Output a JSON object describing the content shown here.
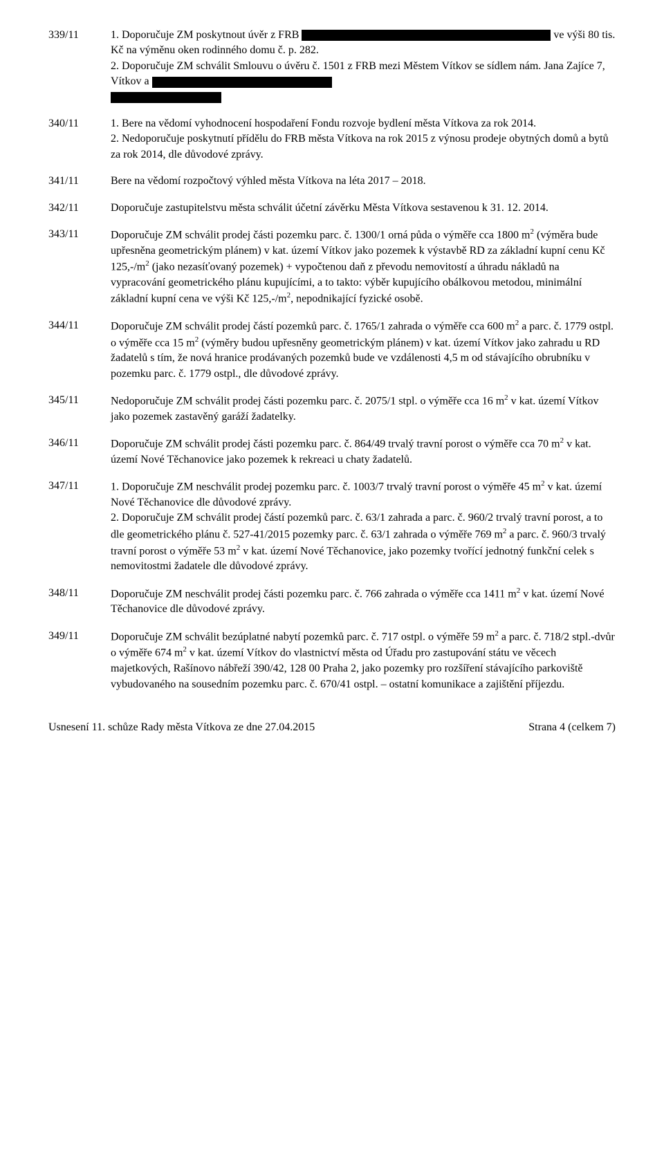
{
  "entries": [
    {
      "number": "339/11",
      "paragraphs": [
        {
          "segments": [
            {
              "text": "1. Doporučuje ZM poskytnout úvěr z FRB "
            },
            {
              "redact": "lg"
            },
            {
              "text": " ve výši 80 tis. Kč na výměnu oken rodinného domu č. p. 282."
            }
          ]
        },
        {
          "segments": [
            {
              "text": "2. Doporučuje ZM schválit Smlouvu o úvěru č. 1501 z FRB mezi Městem Vítkov se sídlem nám. Jana Zajíce 7, Vítkov a "
            },
            {
              "redact": "md"
            }
          ]
        },
        {
          "segments": [
            {
              "redact": "sm"
            }
          ]
        }
      ]
    },
    {
      "number": "340/11",
      "paragraphs": [
        {
          "segments": [
            {
              "text": "1. Bere na vědomí vyhodnocení hospodaření Fondu rozvoje bydlení města Vítkova za rok 2014."
            }
          ]
        },
        {
          "segments": [
            {
              "text": "2. Nedoporučuje poskytnutí přídělu do FRB města Vítkova na rok 2015 z výnosu prodeje obytných domů a bytů za rok 2014, dle důvodové zprávy."
            }
          ]
        }
      ]
    },
    {
      "number": "341/11",
      "paragraphs": [
        {
          "segments": [
            {
              "text": "Bere na vědomí rozpočtový výhled města Vítkova na léta 2017 – 2018."
            }
          ]
        }
      ]
    },
    {
      "number": "342/11",
      "paragraphs": [
        {
          "segments": [
            {
              "text": "Doporučuje zastupitelstvu města schválit účetní závěrku Města Vítkova sestavenou k 31. 12. 2014."
            }
          ]
        }
      ]
    },
    {
      "number": "343/11",
      "paragraphs": [
        {
          "segments": [
            {
              "text": "Doporučuje ZM schválit prodej části pozemku parc. č. 1300/1 orná půda o výměře cca 1800 m"
            },
            {
              "sup": "2"
            },
            {
              "text": " (výměra bude upřesněna geometrickým plánem) v kat. území Vítkov jako pozemek k výstavbě RD za základní kupní cenu Kč 125,-/m"
            },
            {
              "sup": "2"
            },
            {
              "text": " (jako nezasíťovaný pozemek) + vypočtenou daň z převodu nemovitostí a úhradu nákladů na vypracování geometrického plánu kupujícími, a to takto: výběr kupujícího obálkovou metodou, minimální základní kupní cena ve výši Kč 125,-/m"
            },
            {
              "sup": "2"
            },
            {
              "text": ", nepodnikající fyzické osobě."
            }
          ]
        }
      ]
    },
    {
      "number": "344/11",
      "paragraphs": [
        {
          "segments": [
            {
              "text": "Doporučuje ZM schválit prodej částí pozemků parc. č. 1765/1 zahrada o výměře cca 600 m"
            },
            {
              "sup": "2"
            },
            {
              "text": " a parc. č. 1779 ostpl. o výměře cca 15 m"
            },
            {
              "sup": "2"
            },
            {
              "text": " (výměry budou upřesněny geometrickým plánem) v kat. území Vítkov jako zahradu u RD žadatelů s tím, že nová hranice prodávaných pozemků bude ve vzdálenosti 4,5 m od stávajícího obrubníku v pozemku parc. č. 1779 ostpl., dle důvodové zprávy."
            }
          ]
        }
      ]
    },
    {
      "number": "345/11",
      "paragraphs": [
        {
          "segments": [
            {
              "text": "Nedoporučuje ZM schválit prodej části pozemku parc. č. 2075/1 stpl. o výměře cca 16 m"
            },
            {
              "sup": "2"
            },
            {
              "text": " v kat. území Vítkov jako pozemek zastavěný garáží žadatelky."
            }
          ]
        }
      ]
    },
    {
      "number": "346/11",
      "paragraphs": [
        {
          "segments": [
            {
              "text": "Doporučuje ZM schválit prodej části pozemku parc. č. 864/49 trvalý travní porost o výměře cca 70 m"
            },
            {
              "sup": "2"
            },
            {
              "text": " v kat. území Nové Těchanovice jako pozemek k rekreaci u chaty žadatelů."
            }
          ]
        }
      ]
    },
    {
      "number": "347/11",
      "paragraphs": [
        {
          "segments": [
            {
              "text": "1. Doporučuje ZM neschválit prodej pozemku parc. č. 1003/7 trvalý travní porost o výměře 45 m"
            },
            {
              "sup": "2"
            },
            {
              "text": " v kat. území Nové Těchanovice dle důvodové zprávy."
            }
          ]
        },
        {
          "segments": [
            {
              "text": "2. Doporučuje ZM schválit prodej částí pozemků parc. č. 63/1 zahrada a parc. č. 960/2 trvalý travní porost, a to dle geometrického plánu č. 527-41/2015 pozemky parc. č. 63/1 zahrada o výměře 769 m"
            },
            {
              "sup": "2"
            },
            {
              "text": " a parc. č. 960/3 trvalý travní porost o výměře 53 m"
            },
            {
              "sup": "2"
            },
            {
              "text": " v kat. území Nové Těchanovice, jako pozemky tvořící jednotný funkční celek s nemovitostmi žadatele dle důvodové zprávy."
            }
          ]
        }
      ]
    },
    {
      "number": "348/11",
      "paragraphs": [
        {
          "segments": [
            {
              "text": "Doporučuje ZM neschválit prodej části pozemku parc. č. 766 zahrada o výměře cca 1411 m"
            },
            {
              "sup": "2"
            },
            {
              "text": " v kat. území Nové Těchanovice dle důvodové zprávy."
            }
          ]
        }
      ]
    },
    {
      "number": "349/11",
      "paragraphs": [
        {
          "segments": [
            {
              "text": "Doporučuje ZM schválit bezúplatné nabytí pozemků parc. č. 717 ostpl. o výměře 59 m"
            },
            {
              "sup": "2"
            },
            {
              "text": " a parc. č. 718/2 stpl.-dvůr o výměře 674 m"
            },
            {
              "sup": "2"
            },
            {
              "text": " v kat. území Vítkov do vlastnictví města od Úřadu pro zastupování státu ve věcech majetkových, Rašínovo nábřeží 390/42, 128 00 Praha 2, jako pozemky pro rozšíření stávajícího parkoviště vybudovaného na sousedním pozemku parc. č. 670/41 ostpl. – ostatní komunikace a zajištění příjezdu."
            }
          ]
        }
      ]
    }
  ],
  "footer": {
    "left": "Usnesení 11. schůze Rady města Vítkova ze dne 27.04.2015",
    "right": "Strana 4 (celkem 7)"
  }
}
